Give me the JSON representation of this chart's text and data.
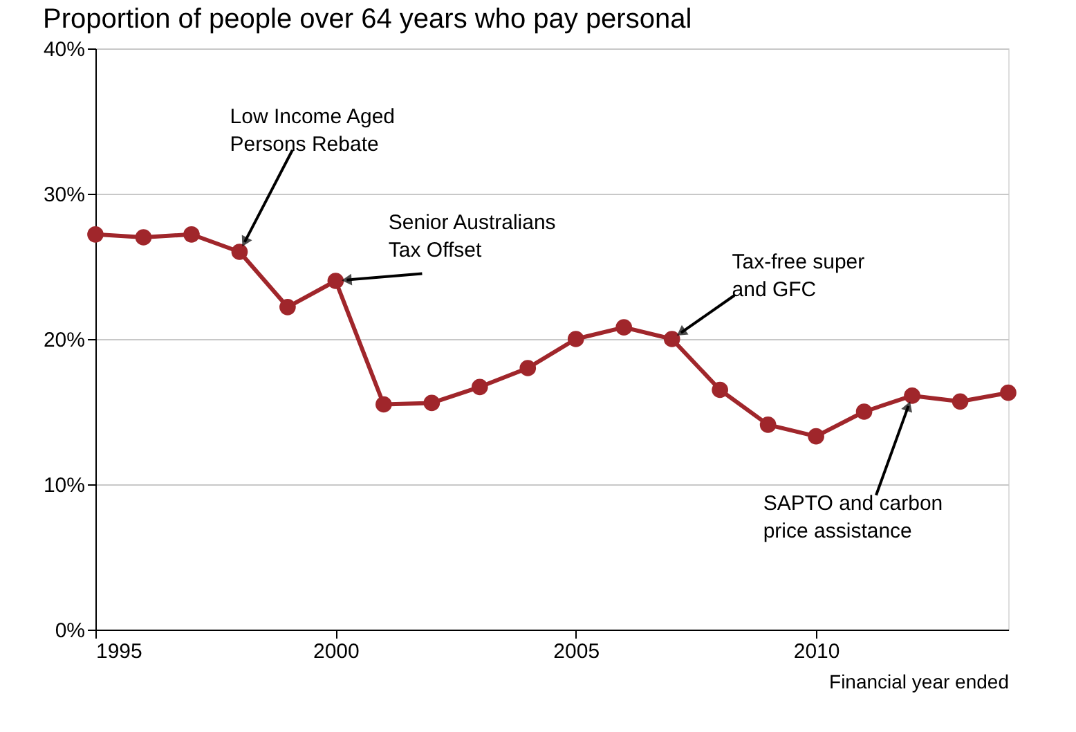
{
  "chart_data": {
    "type": "line",
    "title": "Proportion of people over 64 years who pay personal",
    "xlabel": "Financial year ended",
    "x": [
      1995,
      1996,
      1997,
      1998,
      1999,
      2000,
      2001,
      2002,
      2003,
      2004,
      2005,
      2006,
      2007,
      2008,
      2009,
      2010,
      2011,
      2012,
      2013,
      2014
    ],
    "series": [
      {
        "color": "#a0262b",
        "values": [
          27.2,
          27.0,
          27.2,
          26.0,
          22.2,
          24.0,
          15.5,
          15.6,
          16.7,
          18.0,
          20.0,
          20.8,
          20.0,
          16.5,
          14.1,
          13.3,
          15.0,
          16.1,
          15.7,
          16.3
        ]
      }
    ],
    "xlim": [
      1995,
      2014
    ],
    "xticks": [
      1995,
      2000,
      2005,
      2010
    ],
    "ylim": [
      0,
      40
    ],
    "yticks": [
      {
        "value": 0,
        "label": "0%"
      },
      {
        "value": 10,
        "label": "10%"
      },
      {
        "value": 20,
        "label": "20%"
      },
      {
        "value": 30,
        "label": "30%"
      },
      {
        "value": 40,
        "label": "40%"
      }
    ],
    "grid": "y",
    "marker": "circle",
    "line_style": "solid",
    "legend": false,
    "annotations": [
      {
        "text": "Low Income Aged\nPersons Rebate",
        "x": 1998,
        "y": 26.0
      },
      {
        "text": "Senior Australians\nTax Offset",
        "x": 2000,
        "y": 24.0
      },
      {
        "text": "Tax-free super\nand GFC",
        "x": 2007,
        "y": 20.0
      },
      {
        "text": "SAPTO and carbon\nprice assistance",
        "x": 2012,
        "y": 16.1
      }
    ]
  }
}
